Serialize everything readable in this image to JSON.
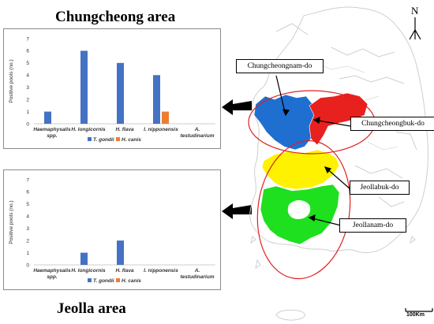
{
  "titles": {
    "top": "Chungcheong area",
    "bottom": "Jeolla area"
  },
  "chart_data": [
    {
      "type": "bar",
      "region": "Chungcheong area",
      "categories": [
        [
          "Haemaphysalis",
          "spp."
        ],
        [
          "H. longicornis"
        ],
        [
          "H. flava"
        ],
        [
          "I. nipponensis"
        ],
        [
          "A.",
          "testudinarium"
        ]
      ],
      "ylabel": "Positive pools (no.)",
      "ylim": [
        0,
        7
      ],
      "yticks": [
        0,
        1,
        2,
        3,
        4,
        5,
        6,
        7
      ],
      "grid": false,
      "legend_position": "bottom",
      "series": [
        {
          "name": "T. gondii",
          "color": "#4472C4",
          "values": [
            1,
            6,
            5,
            4,
            0
          ]
        },
        {
          "name": "H. canis",
          "color": "#ED7D31",
          "values": [
            0,
            0,
            0,
            1,
            0
          ]
        }
      ]
    },
    {
      "type": "bar",
      "region": "Jeolla area",
      "categories": [
        [
          "Haemaphysalis",
          "spp."
        ],
        [
          "H. longicornis"
        ],
        [
          "H. flava"
        ],
        [
          "I. nipponensis"
        ],
        [
          "A.",
          "testudinarium"
        ]
      ],
      "ylabel": "Positive pools (no.)",
      "ylim": [
        0,
        7
      ],
      "yticks": [
        0,
        1,
        2,
        3,
        4,
        5,
        6,
        7
      ],
      "grid": false,
      "legend_position": "bottom",
      "series": [
        {
          "name": "T. gondii",
          "color": "#4472C4",
          "values": [
            0,
            1,
            2,
            0,
            0
          ]
        },
        {
          "name": "H. canis",
          "color": "#ED7D31",
          "values": [
            0,
            0,
            0,
            0,
            0
          ]
        }
      ]
    }
  ],
  "map": {
    "regions": [
      {
        "name": "Chungcheongnam-do",
        "color": "#1F6FD1"
      },
      {
        "name": "Chungcheongbuk-do",
        "color": "#E8201E"
      },
      {
        "name": "Jeollabuk-do",
        "color": "#FFF200"
      },
      {
        "name": "Jeollanam-do",
        "color": "#1EE01E"
      }
    ],
    "north_label": "N",
    "scale_label": "100Km",
    "outline_color": "#d9d9d9",
    "ellipse_color": "#E02020"
  }
}
